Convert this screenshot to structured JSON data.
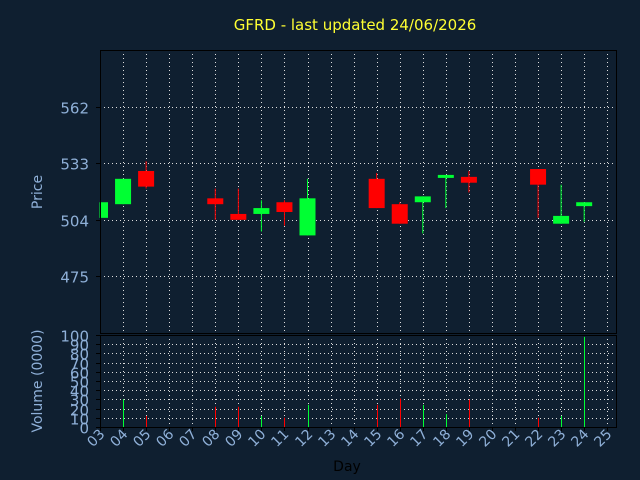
{
  "chart_data": [
    {
      "type": "candlestick",
      "title": "GFRD - last updated 24/06/2026",
      "ylabel": "Price",
      "ylim": [
        446,
        591
      ],
      "yticks": [
        "475",
        "504",
        "533",
        "562"
      ],
      "grid": true,
      "candles": [
        {
          "day": "03",
          "open": 505,
          "close": 513,
          "high": 513,
          "low": 505
        },
        {
          "day": "04",
          "open": 512,
          "close": 525,
          "high": 525,
          "low": 512
        },
        {
          "day": "05",
          "open": 529,
          "close": 521,
          "high": 534,
          "low": 520
        },
        {
          "day": "08",
          "open": 515,
          "close": 512,
          "high": 520,
          "low": 504
        },
        {
          "day": "09",
          "open": 507,
          "close": 504,
          "high": 520,
          "low": 504
        },
        {
          "day": "10",
          "open": 507,
          "close": 510,
          "high": 514,
          "low": 498
        },
        {
          "day": "11",
          "open": 513,
          "close": 508,
          "high": 514,
          "low": 501
        },
        {
          "day": "12",
          "open": 496,
          "close": 515,
          "high": 525,
          "low": 496
        },
        {
          "day": "15",
          "open": 525,
          "close": 510,
          "high": 528,
          "low": 510
        },
        {
          "day": "16",
          "open": 512,
          "close": 502,
          "high": 513,
          "low": 502
        },
        {
          "day": "17",
          "open": 513,
          "close": 516,
          "high": 516,
          "low": 497
        },
        {
          "day": "18",
          "open": 526,
          "close": 527,
          "high": 527,
          "low": 510
        },
        {
          "day": "19",
          "open": 526,
          "close": 523,
          "high": 529,
          "low": 518
        },
        {
          "day": "22",
          "open": 530,
          "close": 522,
          "high": 530,
          "low": 505
        },
        {
          "day": "23",
          "open": 502,
          "close": 506,
          "high": 522,
          "low": 502
        },
        {
          "day": "24",
          "open": 511,
          "close": 513,
          "high": 513,
          "low": 503
        }
      ]
    },
    {
      "type": "bar",
      "ylabel": "Volume (0000)",
      "xlabel": "Day",
      "ylim": [
        0,
        100
      ],
      "yticks": [
        "0",
        "10",
        "20",
        "30",
        "40",
        "50",
        "60",
        "70",
        "80",
        "90",
        "100"
      ],
      "categories": [
        "03",
        "04",
        "05",
        "06",
        "07",
        "08",
        "09",
        "10",
        "11",
        "12",
        "13",
        "14",
        "15",
        "16",
        "17",
        "18",
        "19",
        "20",
        "21",
        "22",
        "23",
        "24",
        "25"
      ],
      "volumes": [
        {
          "day": "03",
          "value": 0
        },
        {
          "day": "04",
          "value": 30
        },
        {
          "day": "05",
          "value": 12
        },
        {
          "day": "08",
          "value": 22
        },
        {
          "day": "09",
          "value": 22
        },
        {
          "day": "10",
          "value": 12
        },
        {
          "day": "11",
          "value": 10
        },
        {
          "day": "12",
          "value": 24
        },
        {
          "day": "15",
          "value": 24
        },
        {
          "day": "16",
          "value": 31
        },
        {
          "day": "17",
          "value": 24
        },
        {
          "day": "18",
          "value": 14
        },
        {
          "day": "19",
          "value": 30
        },
        {
          "day": "22",
          "value": 10
        },
        {
          "day": "23",
          "value": 12
        },
        {
          "day": "24",
          "value": 98
        }
      ]
    }
  ],
  "colors": {
    "background": "#0f1f30",
    "axis": "#000000",
    "grid": "#dddddd",
    "up": "#00ff33",
    "down": "#ff0000",
    "title": "#ffff33",
    "text": "#8fb0d8"
  }
}
